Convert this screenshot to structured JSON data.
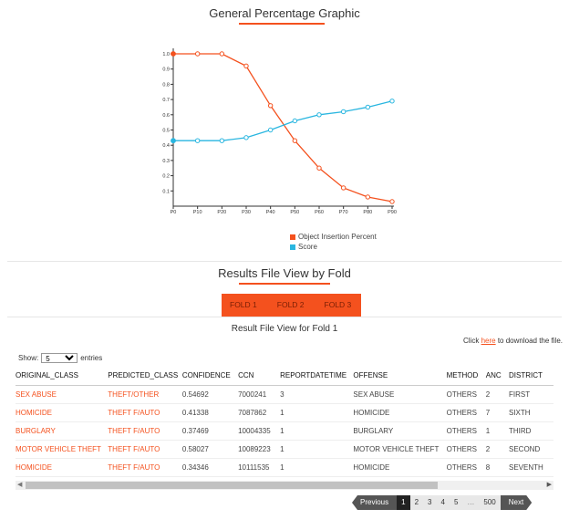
{
  "chart_section": {
    "title": "General Percentage Graphic"
  },
  "chart_data": {
    "type": "line",
    "categories": [
      "P0",
      "P10",
      "P20",
      "P30",
      "P40",
      "P50",
      "P60",
      "P70",
      "P80",
      "P90"
    ],
    "ylim": [
      0,
      1.0
    ],
    "yticks": [
      "0.1",
      "0.2",
      "0.3",
      "0.4",
      "0.5",
      "0.6",
      "0.7",
      "0.8",
      "0.9",
      "1.0"
    ],
    "series": [
      {
        "name": "Object Insertion Percent",
        "color": "#f4511e",
        "values": [
          1.0,
          1.0,
          1.0,
          0.92,
          0.66,
          0.43,
          0.25,
          0.12,
          0.06,
          0.03
        ]
      },
      {
        "name": "Score",
        "color": "#29b6e0",
        "values": [
          0.43,
          0.43,
          0.43,
          0.45,
          0.5,
          0.56,
          0.6,
          0.62,
          0.65,
          0.69
        ]
      }
    ]
  },
  "results": {
    "title": "Results File View by Fold",
    "tabs": [
      "FOLD 1",
      "FOLD 2",
      "FOLD 3"
    ],
    "subtitle": "Result File View for Fold 1",
    "download_prefix": "Click ",
    "download_link": "here",
    "download_suffix": " to download the file.",
    "show_label": "Show:",
    "show_value": "5",
    "entries_label": "entries",
    "columns": [
      "ORIGINAL_CLASS",
      "PREDICTED_CLASS",
      "CONFIDENCE",
      "CCN",
      "REPORTDATETIME",
      "OFFENSE",
      "METHOD",
      "ANC",
      "DISTRICT"
    ],
    "rows": [
      [
        "SEX ABUSE",
        "THEFT/OTHER",
        "0.54692",
        "7000241",
        "3",
        "SEX ABUSE",
        "OTHERS",
        "2",
        "FIRST"
      ],
      [
        "HOMICIDE",
        "THEFT F/AUTO",
        "0.41338",
        "7087862",
        "1",
        "HOMICIDE",
        "OTHERS",
        "7",
        "SIXTH"
      ],
      [
        "BURGLARY",
        "THEFT F/AUTO",
        "0.37469",
        "10004335",
        "1",
        "BURGLARY",
        "OTHERS",
        "1",
        "THIRD"
      ],
      [
        "MOTOR VEHICLE THEFT",
        "THEFT F/AUTO",
        "0.58027",
        "10089223",
        "1",
        "MOTOR VEHICLE THEFT",
        "OTHERS",
        "2",
        "SECOND"
      ],
      [
        "HOMICIDE",
        "THEFT F/AUTO",
        "0.34346",
        "10111535",
        "1",
        "HOMICIDE",
        "OTHERS",
        "8",
        "SEVENTH"
      ]
    ]
  },
  "pagination": {
    "prev": "Previous",
    "pages": [
      "1",
      "2",
      "3",
      "4",
      "5"
    ],
    "ellipsis": "…",
    "last": "500",
    "next": "Next",
    "current": "1"
  }
}
